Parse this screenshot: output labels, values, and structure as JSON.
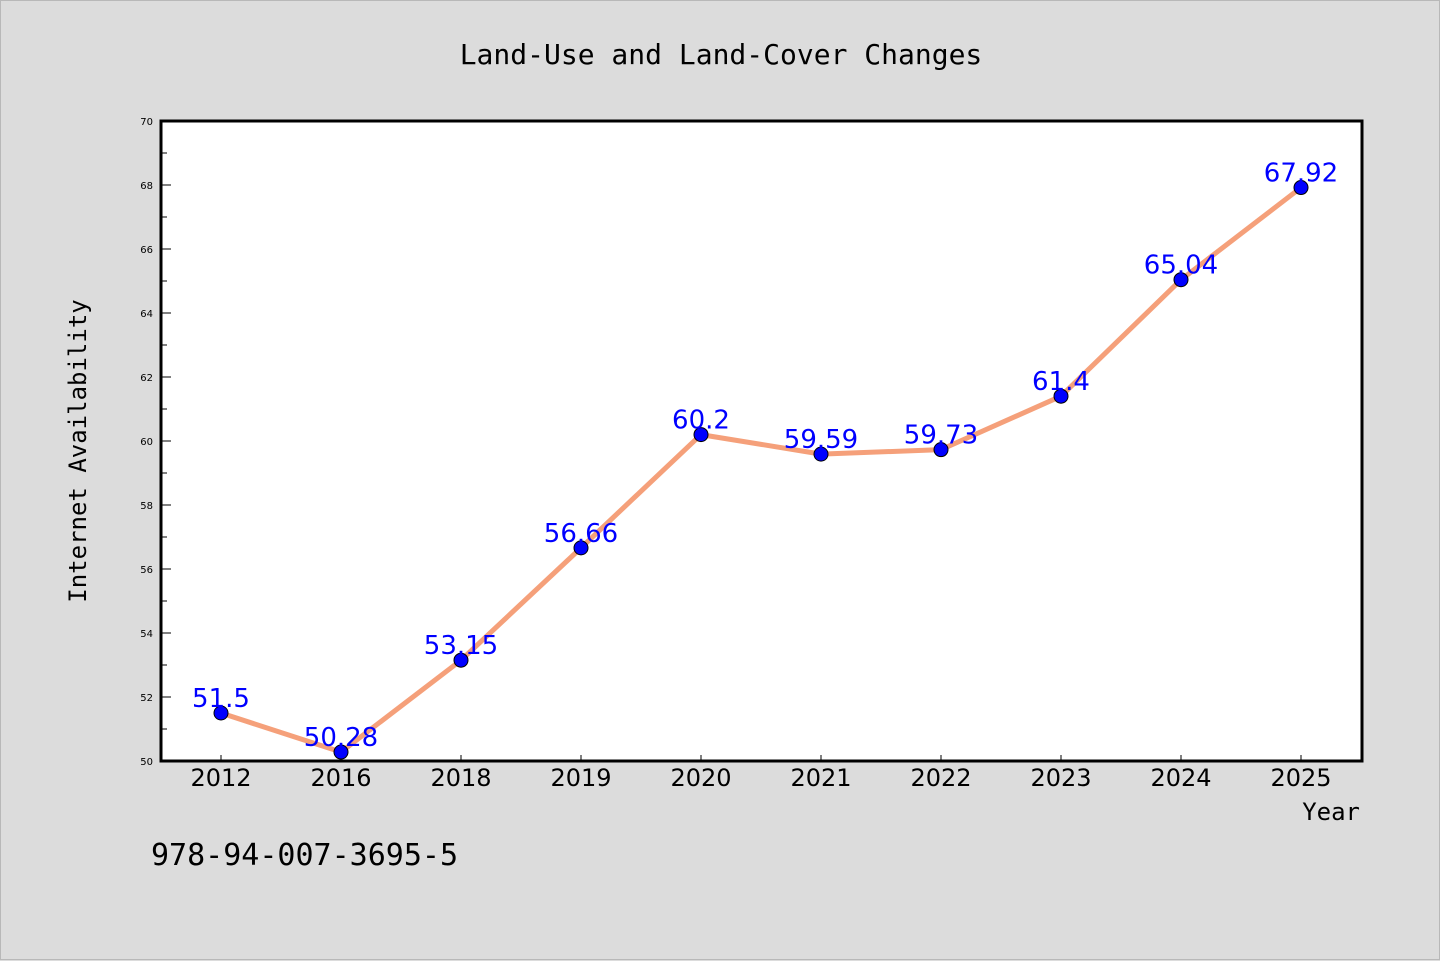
{
  "chart_data": {
    "type": "line",
    "title": "Land-Use and Land-Cover Changes",
    "xlabel": "Year",
    "ylabel": "Internet Availability",
    "categories": [
      "2012",
      "2016",
      "2018",
      "2019",
      "2020",
      "2021",
      "2022",
      "2023",
      "2024",
      "2025"
    ],
    "series": [
      {
        "values": [
          51.5,
          50.28,
          53.15,
          56.66,
          60.2,
          59.59,
          59.73,
          61.4,
          65.04,
          67.92
        ],
        "labels": [
          "51.5",
          "50.28",
          "53.15",
          "56.66",
          "60.2",
          "59.59",
          "59.73",
          "61.4",
          "65.04",
          "67.92"
        ],
        "line_color": "#f5a07a",
        "marker_color": "#0000ff"
      }
    ],
    "ylim": [
      50,
      70
    ],
    "yticks": [
      "50",
      "52",
      "54",
      "56",
      "58",
      "60",
      "62",
      "64",
      "66",
      "68",
      "70"
    ],
    "grid": false,
    "legend": "none"
  },
  "footer": {
    "isbn": "978-94-007-3695-5"
  },
  "colors": {
    "background": "#dcdcdc",
    "plot_background": "#ffffff",
    "label_color": "#0000ff"
  }
}
